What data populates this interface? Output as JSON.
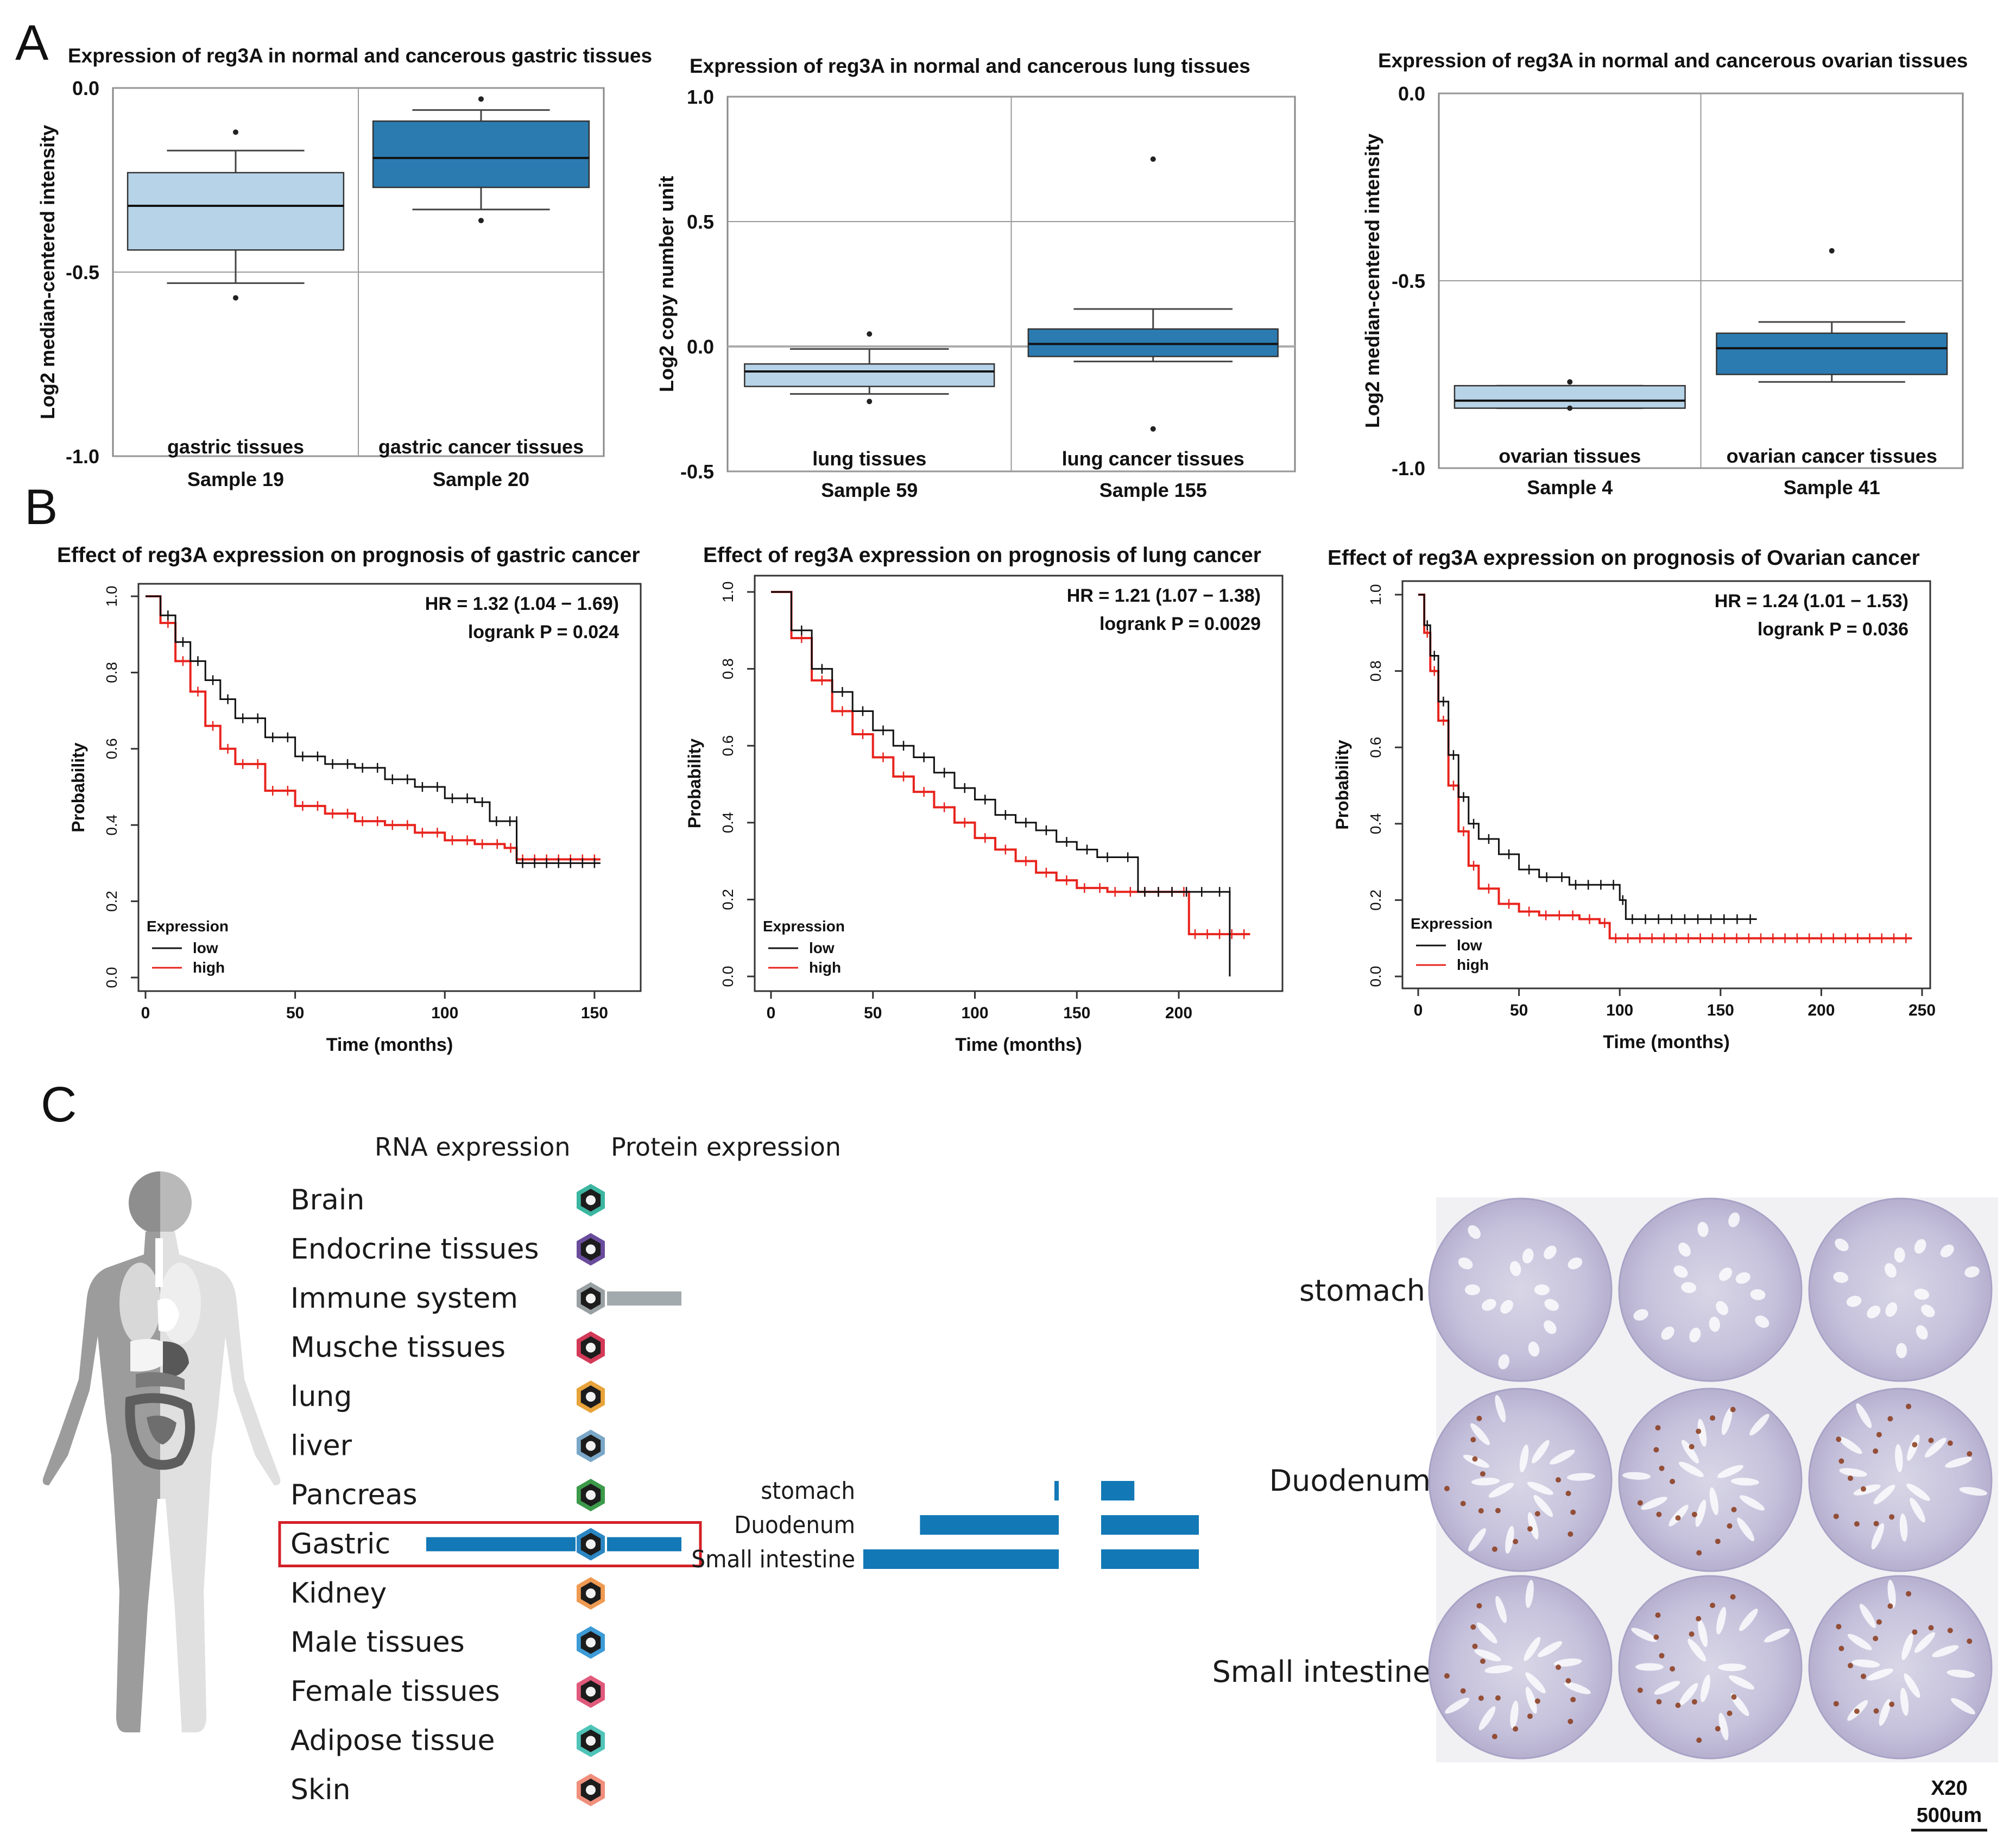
{
  "panel_letters": [
    "A",
    "B",
    "C"
  ],
  "chart_data": [
    {
      "type": "box",
      "title": "Expression of reg3A in normal and cancerous gastric tissues",
      "ylabel": "Log2 median-centered intensity",
      "ylim": [
        -1.0,
        0.0
      ],
      "yticks": [
        0.0,
        -0.5,
        -1.0
      ],
      "ytick_labels": [
        "0.0",
        "-0.5",
        "-1.0"
      ],
      "groups": [
        {
          "name": "gastric tissues",
          "sample": "Sample 19",
          "min": -0.53,
          "q1": -0.44,
          "median": -0.32,
          "q3": -0.23,
          "max": -0.17,
          "outliers": [
            -0.12,
            -0.57
          ],
          "color": "#b6d3e8"
        },
        {
          "name": "gastric cancer tissues",
          "sample": "Sample 20",
          "min": -0.33,
          "q1": -0.27,
          "median": -0.19,
          "q3": -0.09,
          "max": -0.06,
          "outliers": [
            -0.03,
            -0.36
          ],
          "color": "#2b7bb0"
        }
      ]
    },
    {
      "type": "box",
      "title": "Expression of reg3A in normal and cancerous lung tissues",
      "ylabel": "Log2 copy number unit",
      "ylim": [
        -0.5,
        1.0
      ],
      "yticks": [
        1.0,
        0.5,
        0.0,
        -0.5
      ],
      "ytick_labels": [
        "1.0",
        "0.5",
        "0.0",
        "-0.5"
      ],
      "groups": [
        {
          "name": "lung tissues",
          "sample": "Sample 59",
          "min": -0.19,
          "q1": -0.16,
          "median": -0.1,
          "q3": -0.07,
          "max": -0.01,
          "outliers": [
            0.05,
            -0.22
          ],
          "color": "#b6d3e8"
        },
        {
          "name": "lung cancer tissues",
          "sample": "Sample 155",
          "min": -0.06,
          "q1": -0.04,
          "median": 0.01,
          "q3": 0.07,
          "max": 0.15,
          "outliers": [
            0.75,
            -0.33
          ],
          "color": "#2b7bb0"
        }
      ]
    },
    {
      "type": "box",
      "title": "Expression of reg3A in normal and cancerous ovarian tissues",
      "ylabel": "Log2 median-centered intensity",
      "ylim": [
        -1.0,
        0.0
      ],
      "yticks": [
        0.0,
        -0.5,
        -1.0
      ],
      "ytick_labels": [
        "0.0",
        "-0.5",
        "-1.0"
      ],
      "groups": [
        {
          "name": "ovarian tissues",
          "sample": "Sample 4",
          "min": -0.84,
          "q1": -0.84,
          "median": -0.82,
          "q3": -0.78,
          "max": -0.78,
          "outliers": [
            -0.77,
            -0.84
          ],
          "color": "#b6d3e8"
        },
        {
          "name": "ovarian cancer tissues",
          "sample": "Sample 41",
          "min": -0.77,
          "q1": -0.75,
          "median": -0.68,
          "q3": -0.64,
          "max": -0.61,
          "outliers": [
            -0.42,
            -0.98
          ],
          "color": "#2b7bb0"
        }
      ]
    },
    {
      "type": "line",
      "title": "Effect of reg3A expression on prognosis of  gastric cancer",
      "xlabel": "Time (months)",
      "ylabel": "Probability",
      "xlim": [
        0,
        160
      ],
      "ylim": [
        0,
        1.0
      ],
      "xticks": [
        0,
        50,
        100,
        150
      ],
      "yticks": [
        0.0,
        0.2,
        0.4,
        0.6,
        0.8,
        1.0
      ],
      "stats": [
        "HR = 1.32 (1.04 − 1.69)",
        "logrank P = 0.024"
      ],
      "legend_title": "Expression",
      "series": [
        {
          "name": "low",
          "color": "#111111",
          "x": [
            0,
            5,
            10,
            15,
            20,
            25,
            30,
            40,
            50,
            60,
            70,
            80,
            90,
            100,
            110,
            115,
            124,
            124,
            152
          ],
          "y": [
            1.0,
            0.95,
            0.88,
            0.83,
            0.78,
            0.73,
            0.68,
            0.63,
            0.58,
            0.56,
            0.55,
            0.52,
            0.5,
            0.47,
            0.46,
            0.41,
            0.41,
            0.3,
            0.3
          ]
        },
        {
          "name": "high",
          "color": "#e8231d",
          "x": [
            0,
            5,
            10,
            15,
            20,
            25,
            30,
            40,
            50,
            60,
            70,
            80,
            90,
            100,
            110,
            120,
            124,
            152
          ],
          "y": [
            1.0,
            0.93,
            0.83,
            0.75,
            0.66,
            0.6,
            0.56,
            0.49,
            0.45,
            0.43,
            0.41,
            0.4,
            0.38,
            0.36,
            0.35,
            0.34,
            0.31,
            0.31
          ]
        }
      ]
    },
    {
      "type": "line",
      "title": "Effect of reg3A expression on prognosis of lung cancer",
      "xlabel": "Time (months)",
      "ylabel": "Probability",
      "xlim": [
        0,
        245
      ],
      "ylim": [
        0,
        1.0
      ],
      "xticks": [
        0,
        50,
        100,
        150,
        200
      ],
      "yticks": [
        0.0,
        0.2,
        0.4,
        0.6,
        0.8,
        1.0
      ],
      "stats": [
        "HR = 1.21 (1.07 − 1.38)",
        "logrank P = 0.0029"
      ],
      "legend_title": "Expression",
      "series": [
        {
          "name": "low",
          "color": "#111111",
          "x": [
            0,
            10,
            20,
            30,
            40,
            50,
            60,
            70,
            80,
            90,
            100,
            110,
            120,
            130,
            140,
            150,
            160,
            170,
            180,
            200,
            215,
            225,
            225
          ],
          "y": [
            1.0,
            0.9,
            0.8,
            0.74,
            0.69,
            0.64,
            0.6,
            0.57,
            0.53,
            0.49,
            0.46,
            0.42,
            0.4,
            0.38,
            0.35,
            0.33,
            0.31,
            0.31,
            0.22,
            0.22,
            0.22,
            0.22,
            0.0
          ]
        },
        {
          "name": "high",
          "color": "#e8231d",
          "x": [
            0,
            10,
            20,
            30,
            40,
            50,
            60,
            70,
            80,
            90,
            100,
            110,
            120,
            130,
            140,
            150,
            165,
            180,
            200,
            205,
            235
          ],
          "y": [
            1.0,
            0.88,
            0.77,
            0.69,
            0.63,
            0.57,
            0.52,
            0.48,
            0.44,
            0.4,
            0.36,
            0.33,
            0.3,
            0.27,
            0.25,
            0.23,
            0.22,
            0.22,
            0.22,
            0.11,
            0.11
          ]
        }
      ]
    },
    {
      "type": "line",
      "title": "Effect of reg3A expression on prognosis of Ovarian cancer",
      "xlabel": "Time (months)",
      "ylabel": "Probability",
      "xlim": [
        0,
        250
      ],
      "ylim": [
        0,
        1.0
      ],
      "xticks": [
        0,
        50,
        100,
        150,
        200,
        250
      ],
      "yticks": [
        0.0,
        0.2,
        0.4,
        0.6,
        0.8,
        1.0
      ],
      "stats": [
        "HR = 1.24 (1.01 − 1.53)",
        "logrank P = 0.036"
      ],
      "legend_title": "Expression",
      "series": [
        {
          "name": "low",
          "color": "#111111",
          "x": [
            0,
            3,
            6,
            10,
            15,
            20,
            25,
            30,
            40,
            50,
            60,
            75,
            100,
            103,
            168
          ],
          "y": [
            1.0,
            0.92,
            0.84,
            0.72,
            0.58,
            0.47,
            0.4,
            0.36,
            0.32,
            0.28,
            0.26,
            0.24,
            0.2,
            0.15,
            0.15
          ]
        },
        {
          "name": "high",
          "color": "#e8231d",
          "x": [
            0,
            3,
            6,
            10,
            15,
            20,
            25,
            30,
            40,
            50,
            60,
            80,
            90,
            95,
            245
          ],
          "y": [
            1.0,
            0.9,
            0.8,
            0.67,
            0.5,
            0.38,
            0.29,
            0.23,
            0.19,
            0.17,
            0.16,
            0.15,
            0.14,
            0.1,
            0.1
          ]
        }
      ]
    }
  ],
  "panelC": {
    "col_rna": "RNA expression",
    "col_protein": "Protein expression",
    "tissues": [
      {
        "name": "Brain",
        "icon_color": "#3bb6a0",
        "bar_left": 0,
        "bar_right": 0
      },
      {
        "name": "Endocrine tissues",
        "icon_color": "#6a4c9c",
        "bar_left": 0,
        "bar_right": 0
      },
      {
        "name": "Immune system",
        "icon_color": "#9aa1a5",
        "bar_left": 0,
        "bar_right": 1,
        "bar_color": "#a3aaad"
      },
      {
        "name": "Musche tissues",
        "icon_color": "#d33a58",
        "bar_left": 0,
        "bar_right": 0
      },
      {
        "name": "lung",
        "icon_color": "#e8a43b",
        "bar_left": 0,
        "bar_right": 0
      },
      {
        "name": "liver",
        "icon_color": "#7aa7c7",
        "bar_left": 0,
        "bar_right": 0
      },
      {
        "name": "Pancreas",
        "icon_color": "#3c9a4a",
        "bar_left": 0,
        "bar_right": 0
      },
      {
        "name": "Gastric",
        "icon_color": "#2a86c2",
        "bar_left": 1,
        "bar_right": 1,
        "bar_color": "#1278b6",
        "highlight": true
      },
      {
        "name": "Kidney",
        "icon_color": "#ef9a52",
        "bar_left": 0,
        "bar_right": 0
      },
      {
        "name": "Male tissues",
        "icon_color": "#3d9bd6",
        "bar_left": 0,
        "bar_right": 0
      },
      {
        "name": "Female tissues",
        "icon_color": "#e05a7c",
        "bar_left": 0,
        "bar_right": 0
      },
      {
        "name": "Adipose tissue",
        "icon_color": "#4fc4b8",
        "bar_left": 0,
        "bar_right": 0
      },
      {
        "name": "Skin",
        "icon_color": "#f08f7c",
        "bar_left": 0,
        "bar_right": 0
      }
    ],
    "detail_rows": [
      {
        "name": "stomach",
        "rna": 0.02,
        "protein": 0.34
      },
      {
        "name": "Duodenum",
        "rna": 0.71,
        "protein": 1.0
      },
      {
        "name": "Small intestine",
        "rna": 1.0,
        "protein": 1.0
      }
    ],
    "ihc_rows": [
      "stomach",
      "Duodenum",
      "Small intestine"
    ],
    "magnification": "X20",
    "scale_bar": "500um"
  }
}
